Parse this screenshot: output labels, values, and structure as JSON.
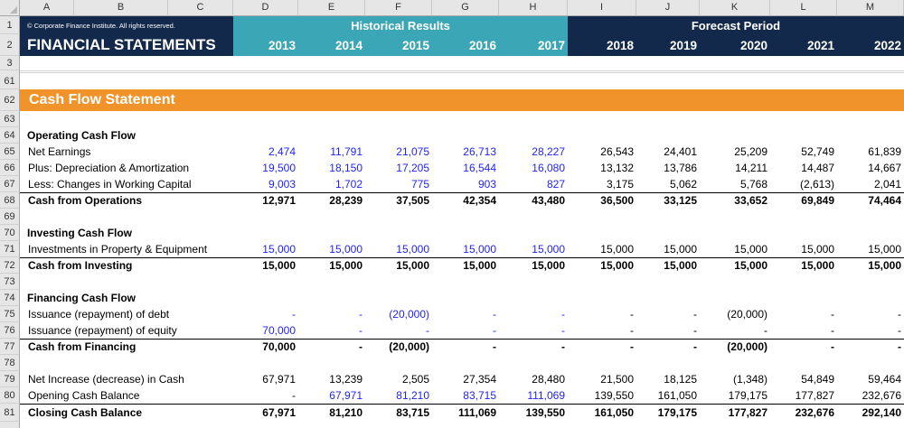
{
  "column_headers": [
    "A",
    "B",
    "C",
    "D",
    "E",
    "F",
    "G",
    "H",
    "I",
    "J",
    "K",
    "L",
    "M"
  ],
  "header": {
    "copyright": "© Corporate Finance Institute. All rights reserved.",
    "title": "FINANCIAL STATEMENTS",
    "historical_label": "Historical Results",
    "forecast_label": "Forecast Period",
    "years": [
      "2013",
      "2014",
      "2015",
      "2016",
      "2017",
      "2018",
      "2019",
      "2020",
      "2021",
      "2022"
    ]
  },
  "colors": {
    "navy": "#13294b",
    "teal": "#3ba6b5",
    "orange": "#f0932b",
    "input_blue": "#1f1fff"
  },
  "section_title": "Cash Flow Statement",
  "row_numbers": {
    "r1": "1",
    "r2": "2",
    "r3": "3",
    "r61": "61",
    "r62": "62",
    "r63": "63",
    "r64": "64",
    "r65": "65",
    "r66": "66",
    "r67": "67",
    "r68": "68",
    "r69": "69",
    "r70": "70",
    "r71": "71",
    "r72": "72",
    "r73": "73",
    "r74": "74",
    "r75": "75",
    "r76": "76",
    "r77": "77",
    "r78": "78",
    "r79": "79",
    "r80": "80",
    "r81": "81"
  },
  "rows": {
    "op_header": "Operating Cash Flow",
    "net_earnings": {
      "label": "Net Earnings",
      "values": [
        "2,474",
        "11,791",
        "21,075",
        "26,713",
        "28,227",
        "26,543",
        "24,401",
        "25,209",
        "52,749",
        "61,839"
      ]
    },
    "depreciation": {
      "label": "Plus: Depreciation & Amortization",
      "values": [
        "19,500",
        "18,150",
        "17,205",
        "16,544",
        "16,080",
        "13,132",
        "13,786",
        "14,211",
        "14,487",
        "14,667"
      ]
    },
    "working_capital": {
      "label": "Less: Changes in Working Capital",
      "values": [
        "9,003",
        "1,702",
        "775",
        "903",
        "827",
        "3,175",
        "5,062",
        "5,768",
        "(2,613)",
        "2,041"
      ]
    },
    "cash_ops": {
      "label": "Cash from Operations",
      "values": [
        "12,971",
        "28,239",
        "37,505",
        "42,354",
        "43,480",
        "36,500",
        "33,125",
        "33,652",
        "69,849",
        "74,464"
      ]
    },
    "inv_header": "Investing Cash Flow",
    "investments": {
      "label": "Investments in Property & Equipment",
      "values": [
        "15,000",
        "15,000",
        "15,000",
        "15,000",
        "15,000",
        "15,000",
        "15,000",
        "15,000",
        "15,000",
        "15,000"
      ]
    },
    "cash_inv": {
      "label": "Cash from Investing",
      "values": [
        "15,000",
        "15,000",
        "15,000",
        "15,000",
        "15,000",
        "15,000",
        "15,000",
        "15,000",
        "15,000",
        "15,000"
      ]
    },
    "fin_header": "Financing Cash Flow",
    "debt": {
      "label": "Issuance (repayment) of debt",
      "values": [
        "-",
        "-",
        "(20,000)",
        "-",
        "-",
        "-",
        "-",
        "(20,000)",
        "-",
        "-"
      ]
    },
    "equity": {
      "label": "Issuance (repayment) of equity",
      "values": [
        "70,000",
        "-",
        "-",
        "-",
        "-",
        "-",
        "-",
        "-",
        "-",
        "-"
      ]
    },
    "cash_fin": {
      "label": "Cash from Financing",
      "values": [
        "70,000",
        "-",
        "(20,000)",
        "-",
        "-",
        "-",
        "-",
        "(20,000)",
        "-",
        "-"
      ]
    },
    "net_increase": {
      "label": "Net Increase (decrease) in Cash",
      "values": [
        "67,971",
        "13,239",
        "2,505",
        "27,354",
        "28,480",
        "21,500",
        "18,125",
        "(1,348)",
        "54,849",
        "59,464"
      ]
    },
    "opening": {
      "label": "Opening Cash Balance",
      "values": [
        "-",
        "67,971",
        "81,210",
        "83,715",
        "111,069",
        "139,550",
        "161,050",
        "179,175",
        "177,827",
        "232,676"
      ]
    },
    "closing": {
      "label": "Closing Cash Balance",
      "values": [
        "67,971",
        "81,210",
        "83,715",
        "111,069",
        "139,550",
        "161,050",
        "179,175",
        "177,827",
        "232,676",
        "292,140"
      ]
    }
  }
}
